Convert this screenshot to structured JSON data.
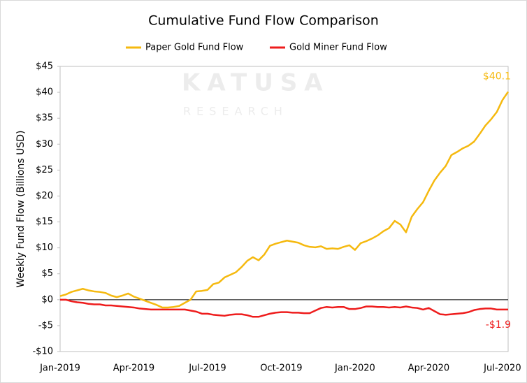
{
  "chart_data": {
    "type": "line",
    "title": "Cumulative Fund Flow Comparison",
    "y_label": "Weekly Fund Flow (Billions USD)",
    "watermark": [
      "KATUSA",
      "RESEARCH"
    ],
    "categories": [
      "Jan-2019",
      null,
      null,
      null,
      null,
      null,
      null,
      null,
      null,
      null,
      null,
      null,
      null,
      "Apr-2019",
      null,
      null,
      null,
      null,
      null,
      null,
      null,
      null,
      null,
      null,
      null,
      null,
      "Jul-2019",
      null,
      null,
      null,
      null,
      null,
      null,
      null,
      null,
      null,
      null,
      null,
      null,
      "Oct-2019",
      null,
      null,
      null,
      null,
      null,
      null,
      null,
      null,
      null,
      null,
      null,
      null,
      "Jan-2020",
      null,
      null,
      null,
      null,
      null,
      null,
      null,
      null,
      null,
      null,
      null,
      null,
      "Apr-2020",
      null,
      null,
      null,
      null,
      null,
      null,
      null,
      null,
      null,
      null,
      null,
      null,
      "Jul-2020",
      null
    ],
    "series": [
      {
        "name": "Paper Gold Fund Flow",
        "color": "#f5b90f",
        "values": [
          0.7,
          1.0,
          1.5,
          1.8,
          2.1,
          1.8,
          1.6,
          1.5,
          1.3,
          0.8,
          0.5,
          0.8,
          1.2,
          0.6,
          0.2,
          -0.2,
          -0.6,
          -1.0,
          -1.5,
          -1.5,
          -1.4,
          -1.2,
          -0.6,
          0.0,
          1.6,
          1.7,
          1.9,
          3.0,
          3.3,
          4.3,
          4.8,
          5.3,
          6.3,
          7.5,
          8.2,
          7.6,
          8.7,
          10.4,
          10.8,
          11.1,
          11.4,
          11.2,
          11.0,
          10.5,
          10.2,
          10.1,
          10.3,
          9.8,
          9.9,
          9.8,
          10.2,
          10.5,
          9.6,
          10.9,
          11.3,
          11.8,
          12.4,
          13.2,
          13.8,
          15.2,
          14.5,
          13.0,
          16.0,
          17.5,
          18.8,
          21.0,
          23.0,
          24.5,
          25.8,
          27.9,
          28.5,
          29.2,
          29.7,
          30.5,
          32.0,
          33.6,
          34.8,
          36.2,
          38.5,
          40.1
        ],
        "value_labels": [
          null,
          null,
          null,
          null,
          null,
          null,
          null,
          null,
          null,
          null,
          null,
          null,
          null,
          null,
          null,
          null,
          null,
          null,
          null,
          null,
          null,
          null,
          null,
          null,
          null,
          null,
          null,
          null,
          null,
          null,
          null,
          null,
          null,
          null,
          null,
          null,
          null,
          null,
          null,
          null,
          null,
          null,
          null,
          null,
          null,
          null,
          null,
          null,
          null,
          null,
          null,
          null,
          null,
          null,
          null,
          null,
          null,
          null,
          null,
          null,
          null,
          null,
          null,
          null,
          null,
          null,
          null,
          null,
          null,
          null,
          null,
          null,
          null,
          null,
          null,
          null,
          null,
          null,
          null,
          "$40.1"
        ]
      },
      {
        "name": "Gold Miner Fund Flow",
        "color": "#ee1c1c",
        "values": [
          0,
          0,
          -0.3,
          -0.5,
          -0.6,
          -0.8,
          -0.9,
          -0.9,
          -1.1,
          -1.1,
          -1.2,
          -1.3,
          -1.4,
          -1.5,
          -1.7,
          -1.8,
          -1.9,
          -1.9,
          -1.9,
          -1.9,
          -1.9,
          -1.9,
          -1.9,
          -2.1,
          -2.3,
          -2.7,
          -2.7,
          -2.9,
          -3.0,
          -3.1,
          -2.9,
          -2.8,
          -2.8,
          -3.0,
          -3.3,
          -3.3,
          -3.0,
          -2.7,
          -2.5,
          -2.4,
          -2.4,
          -2.5,
          -2.5,
          -2.6,
          -2.6,
          -2.1,
          -1.6,
          -1.4,
          -1.5,
          -1.4,
          -1.4,
          -1.8,
          -1.8,
          -1.6,
          -1.3,
          -1.3,
          -1.4,
          -1.4,
          -1.5,
          -1.4,
          -1.5,
          -1.3,
          -1.5,
          -1.6,
          -1.9,
          -1.6,
          -2.2,
          -2.8,
          -2.9,
          -2.8,
          -2.7,
          -2.6,
          -2.4,
          -2.0,
          -1.8,
          -1.7,
          -1.7,
          -1.9,
          -1.9,
          -1.9
        ],
        "value_labels": [
          null,
          null,
          null,
          null,
          null,
          null,
          null,
          null,
          null,
          null,
          null,
          null,
          null,
          null,
          null,
          null,
          null,
          null,
          null,
          null,
          null,
          null,
          null,
          null,
          null,
          null,
          null,
          null,
          null,
          null,
          null,
          null,
          null,
          null,
          null,
          null,
          null,
          null,
          null,
          null,
          null,
          null,
          null,
          null,
          null,
          null,
          null,
          null,
          null,
          null,
          null,
          null,
          null,
          null,
          null,
          null,
          null,
          null,
          null,
          null,
          null,
          null,
          null,
          null,
          null,
          null,
          null,
          null,
          null,
          null,
          null,
          null,
          null,
          null,
          null,
          null,
          null,
          null,
          null,
          "-$1.9"
        ]
      }
    ],
    "ylim": [
      -10,
      45
    ],
    "yticks": [
      {
        "value": -10,
        "label": "-$10"
      },
      {
        "value": -5,
        "label": "-$5"
      },
      {
        "value": 0,
        "label": "$0"
      },
      {
        "value": 5,
        "label": "$5"
      },
      {
        "value": 10,
        "label": "$10"
      },
      {
        "value": 15,
        "label": "$15"
      },
      {
        "value": 20,
        "label": "$20"
      },
      {
        "value": 25,
        "label": "$25"
      },
      {
        "value": 30,
        "label": "$30"
      },
      {
        "value": 35,
        "label": "$35"
      },
      {
        "value": 40,
        "label": "$40"
      },
      {
        "value": 45,
        "label": "$45"
      }
    ],
    "zero_line": true,
    "legend": "top"
  }
}
